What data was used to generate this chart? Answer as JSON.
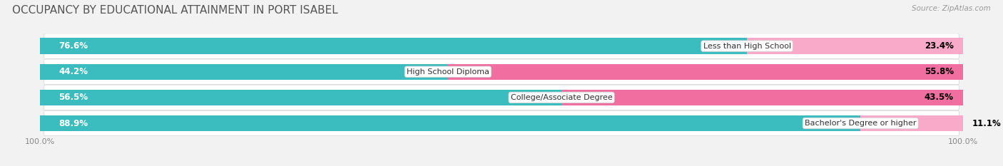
{
  "title": "OCCUPANCY BY EDUCATIONAL ATTAINMENT IN PORT ISABEL",
  "source": "Source: ZipAtlas.com",
  "categories": [
    "Less than High School",
    "High School Diploma",
    "College/Associate Degree",
    "Bachelor's Degree or higher"
  ],
  "owner_pct": [
    76.6,
    44.2,
    56.5,
    88.9
  ],
  "renter_pct": [
    23.4,
    55.8,
    43.5,
    11.1
  ],
  "owner_color": "#3bbcbf",
  "renter_color": "#f06fa0",
  "renter_color_light": "#f9aac8",
  "bg_color": "#f2f2f2",
  "row_bg_color_odd": "#e8e8e8",
  "row_bg_color_even": "#f5f5f5",
  "title_fontsize": 11,
  "label_fontsize": 8.5,
  "pct_fontsize": 8.5,
  "tick_fontsize": 8,
  "legend_fontsize": 8.5,
  "bar_height": 0.62
}
